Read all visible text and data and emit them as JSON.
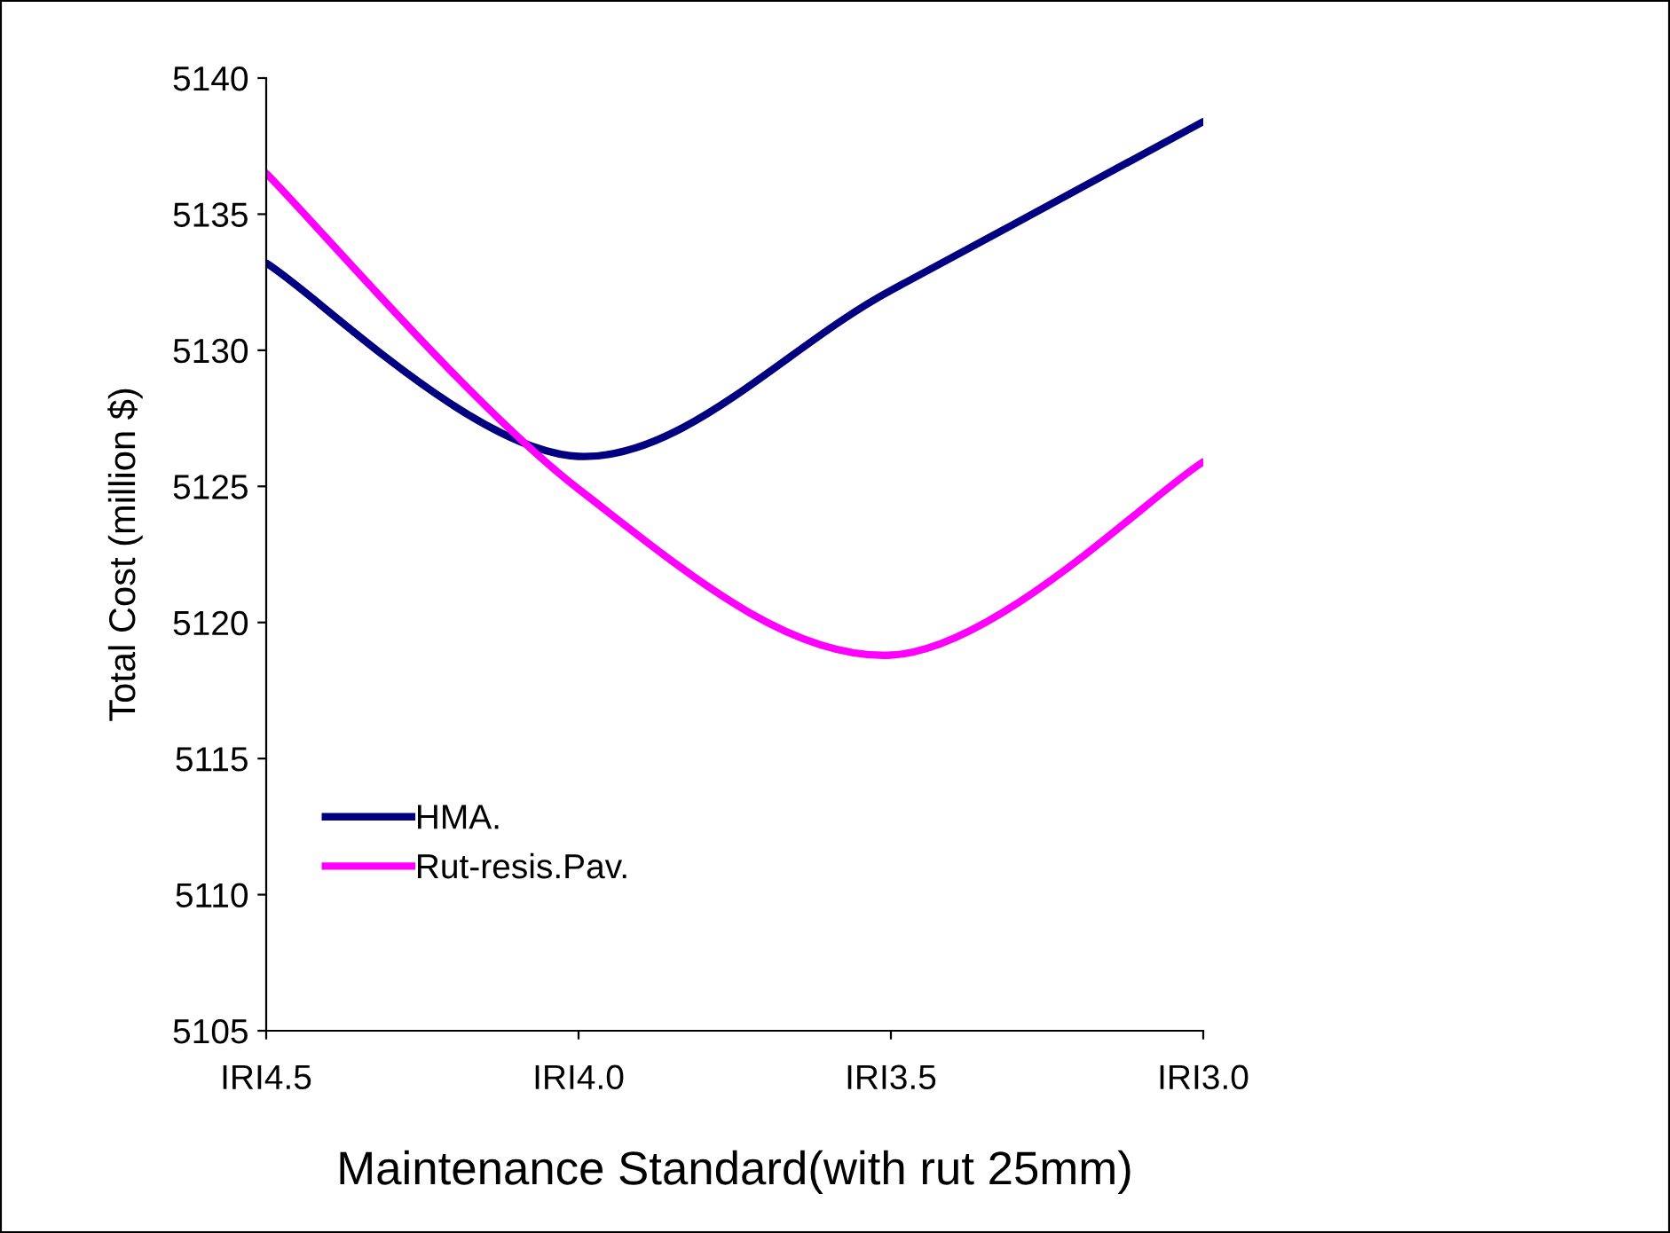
{
  "chart_data": {
    "type": "line",
    "xlabel": "Maintenance Standard(with rut 25mm)",
    "ylabel": "Total Cost (million $)",
    "categories": [
      "IRI4.5",
      "IRI4.0",
      "IRI3.5",
      "IRI3.0"
    ],
    "series": [
      {
        "name": "HMA.",
        "color": "#000080",
        "values": [
          5133.2,
          5126.1,
          5132.2,
          5138.4
        ]
      },
      {
        "name": "Rut-resis.Pav.",
        "color": "#ff00ff",
        "values": [
          5136.5,
          5124.9,
          5118.8,
          5125.9
        ]
      }
    ],
    "ylim": [
      5105,
      5140
    ],
    "yticks": [
      5105,
      5110,
      5115,
      5120,
      5125,
      5130,
      5135,
      5140
    ],
    "grid": false,
    "legend": "bottom left",
    "marker": "none",
    "line_style": "solid"
  }
}
